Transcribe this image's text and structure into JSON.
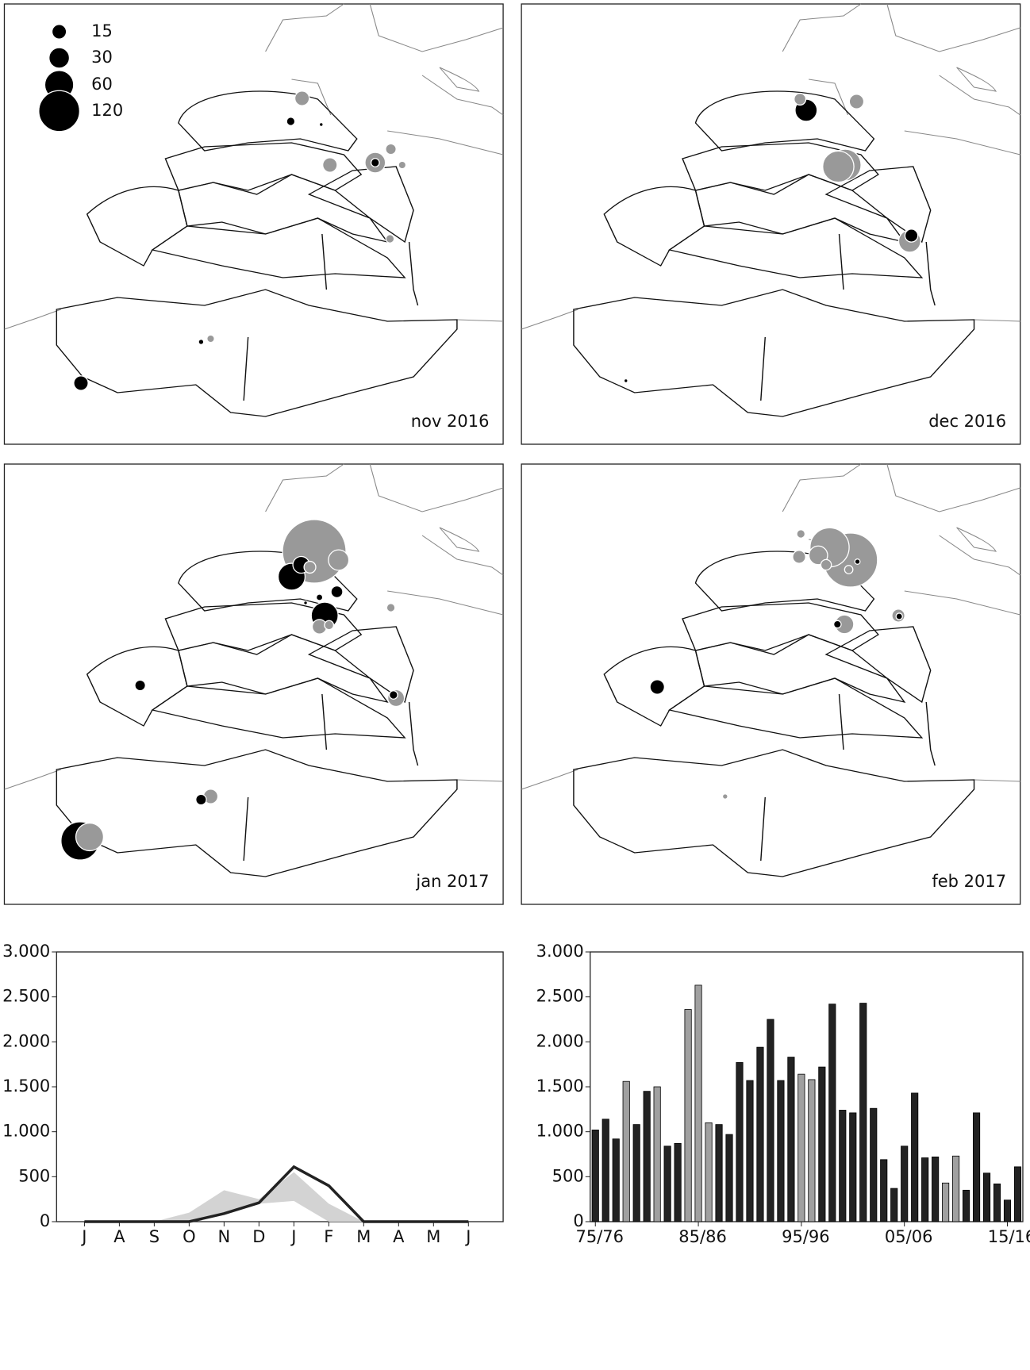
{
  "chart_data": [
    {
      "type": "bubble-map",
      "label": "nov 2016",
      "size_legend": [
        15,
        30,
        60,
        120
      ],
      "values": [
        15,
        5,
        1,
        8,
        15,
        30,
        5,
        4,
        5,
        2,
        4,
        15
      ],
      "colors": [
        "#999999",
        "#000000",
        "#000000",
        "#999999",
        "#999999",
        "#999999",
        "#000000",
        "#999999",
        "#999999",
        "#000000",
        "#999999",
        "#000000"
      ]
    },
    {
      "type": "bubble-map",
      "label": "dec 2016",
      "values": [
        10,
        35,
        15,
        72,
        70,
        12,
        35,
        1
      ],
      "colors": [
        "#999999",
        "#000000",
        "#999999",
        "#999999",
        "#999999",
        "#000000",
        "#999999",
        "#000000"
      ]
    },
    {
      "type": "bubble-map",
      "label": "jan 2017",
      "values": [
        290,
        30,
        52,
        20,
        10,
        10,
        3,
        1,
        52,
        15,
        6,
        5,
        20,
        5,
        8,
        15,
        8,
        105,
        55
      ],
      "colors": [
        "#999999",
        "#999999",
        "#000000",
        "#000000",
        "#999999",
        "#000000",
        "#000000",
        "#000000",
        "#000000",
        "#999999",
        "#999999",
        "#999999",
        "#999999",
        "#000000",
        "#000000",
        "#999999",
        "#000000",
        "#000000",
        "#999999"
      ]
    },
    {
      "type": "bubble-map",
      "label": "feb 2017",
      "values": [
        5,
        12,
        210,
        110,
        25,
        8,
        5,
        2,
        25,
        4,
        12,
        3,
        15,
        2
      ],
      "colors": [
        "#999999",
        "#999999",
        "#999999",
        "#999999",
        "#999999",
        "#999999",
        "#999999",
        "#000000",
        "#999999",
        "#000000",
        "#999999",
        "#000000",
        "#000000",
        "#999999"
      ]
    },
    {
      "type": "line",
      "categories": [
        "J",
        "A",
        "S",
        "O",
        "N",
        "D",
        "J",
        "F",
        "M",
        "A",
        "M",
        "J"
      ],
      "values": [
        0,
        0,
        0,
        0,
        90,
        210,
        610,
        400,
        0,
        0,
        0,
        0
      ],
      "band_low": [
        0,
        0,
        0,
        0,
        80,
        200,
        230,
        0,
        0,
        0,
        0,
        0
      ],
      "band_high": [
        0,
        0,
        0,
        100,
        350,
        250,
        550,
        200,
        0,
        0,
        0,
        0
      ],
      "color": "#222222",
      "band_color": "#d3d3d3",
      "ylim": [
        0,
        3000
      ],
      "yticks": [
        0,
        500,
        {
          "value": 1000,
          "label": "1.000"
        },
        {
          "value": 1500,
          "label": "1.500"
        },
        {
          "value": 2000,
          "label": "2.000"
        },
        {
          "value": 2500,
          "label": "2.500"
        },
        {
          "value": 3000,
          "label": "3.000"
        }
      ]
    },
    {
      "type": "bar",
      "categories": [
        "75/76",
        null,
        null,
        null,
        null,
        null,
        null,
        null,
        null,
        null,
        "85/86",
        null,
        null,
        null,
        null,
        null,
        null,
        null,
        null,
        null,
        "95/96",
        null,
        null,
        null,
        null,
        null,
        null,
        null,
        null,
        null,
        "05/06",
        null,
        null,
        null,
        null,
        null,
        null,
        null,
        null,
        null,
        "15/16",
        null
      ],
      "values": [
        1020,
        1140,
        920,
        1560,
        1080,
        1450,
        1500,
        840,
        870,
        2360,
        2630,
        1100,
        1080,
        970,
        1770,
        1570,
        1940,
        2250,
        1570,
        1830,
        1640,
        1580,
        1720,
        2420,
        1240,
        1210,
        2430,
        1260,
        690,
        370,
        840,
        1430,
        710,
        720,
        430,
        730,
        350,
        1210,
        540,
        420,
        240,
        610
      ],
      "colors": [
        "#222222",
        "#222222",
        "#222222",
        "#a0a0a0",
        "#222222",
        "#222222",
        "#a0a0a0",
        "#222222",
        "#222222",
        "#a0a0a0",
        "#a0a0a0",
        "#a0a0a0",
        "#222222",
        "#222222",
        "#222222",
        "#222222",
        "#222222",
        "#222222",
        "#222222",
        "#222222",
        "#a0a0a0",
        "#a0a0a0",
        "#222222",
        "#222222",
        "#222222",
        "#222222",
        "#222222",
        "#222222",
        "#222222",
        "#222222",
        "#222222",
        "#222222",
        "#222222",
        "#222222",
        "#a0a0a0",
        "#a0a0a0",
        "#222222",
        "#222222",
        "#222222",
        "#222222",
        "#222222",
        "#222222"
      ],
      "ylim": [
        0,
        3000
      ],
      "yticks": [
        0,
        500,
        {
          "value": 1000,
          "label": "1.000"
        },
        {
          "value": 1500,
          "label": "1.500"
        },
        {
          "value": 2000,
          "label": "2.000"
        },
        {
          "value": 2500,
          "label": "2.500"
        },
        {
          "value": 3000,
          "label": "3.000"
        }
      ]
    }
  ]
}
